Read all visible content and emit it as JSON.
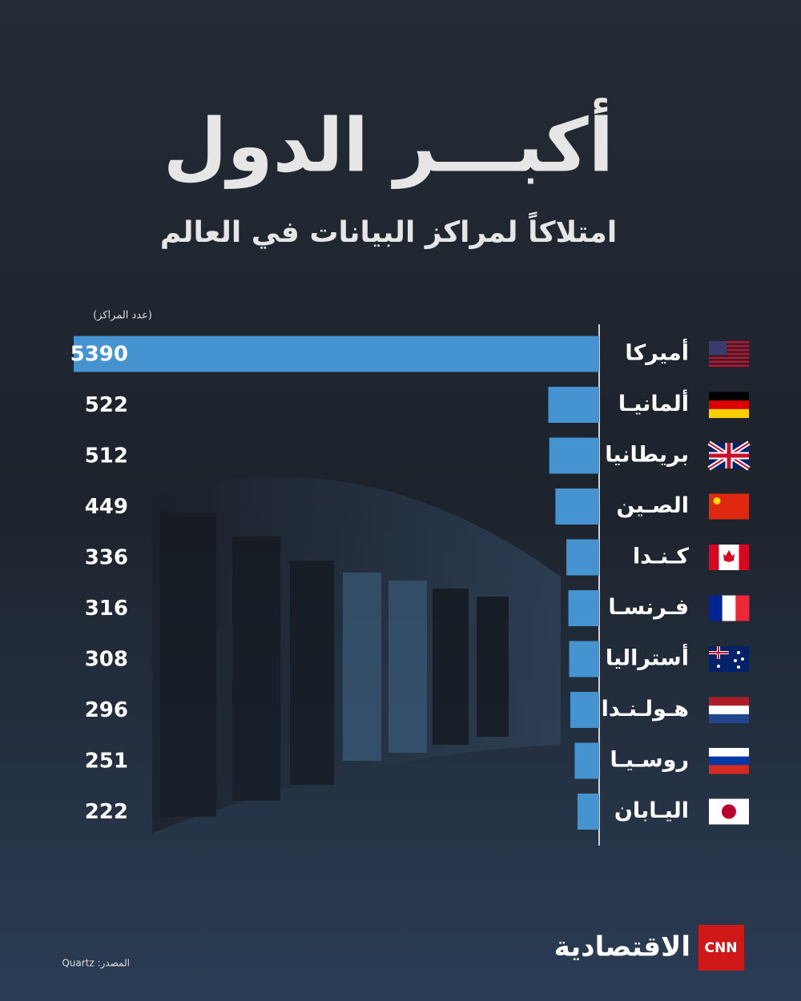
{
  "chart_data": {
    "type": "bar",
    "title": "أكبـــر الدول",
    "subtitle": "امتلاكاً لمراكز البيانات في العالم",
    "unit_label": "(عدد المراكز)",
    "categories": [
      "أميركا",
      "ألمانيـا",
      "بريطانيا",
      "الصـين",
      "كـنـدا",
      "فـرنسـا",
      "أستراليا",
      "هـولـنـدا",
      "روسـيـا",
      "اليـابان"
    ],
    "values": [
      5390,
      522,
      512,
      449,
      336,
      316,
      308,
      296,
      251,
      222
    ],
    "color": "#4593d0",
    "source": "المصدر: Quartz"
  },
  "branding": {
    "cnn": "CNN",
    "name": "الاقتصادية"
  }
}
